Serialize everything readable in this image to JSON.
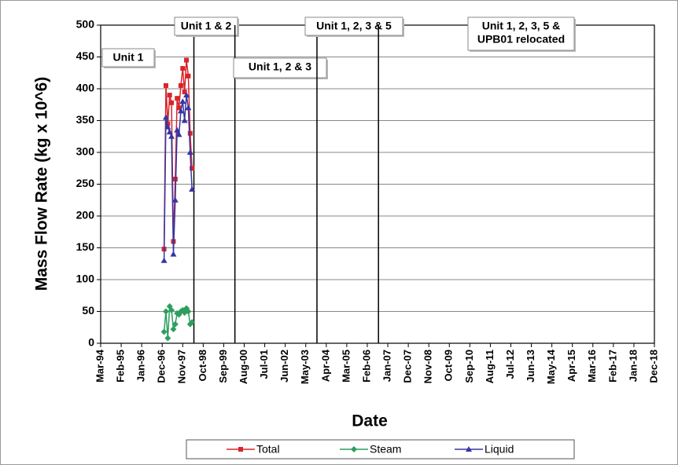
{
  "chart_data": {
    "type": "line",
    "y_label": "Mass Flow Rate (kg x 10^6)",
    "x_label": "Date",
    "x": [
      "1997-01",
      "1997-02",
      "1997-03",
      "1997-04",
      "1997-05",
      "1997-06",
      "1997-07",
      "1997-08",
      "1997-09",
      "1997-10",
      "1997-11",
      "1997-12",
      "1998-01",
      "1998-02",
      "1998-03",
      "1998-04"
    ],
    "series": [
      {
        "name": "Total",
        "color": "#d8252b",
        "marker": "square",
        "values": [
          148,
          405,
          345,
          390,
          378,
          160,
          258,
          385,
          370,
          405,
          432,
          395,
          445,
          420,
          330,
          275
        ]
      },
      {
        "name": "Steam",
        "color": "#2e9e5e",
        "marker": "diamond",
        "values": [
          18,
          50,
          8,
          58,
          52,
          22,
          30,
          47,
          45,
          50,
          52,
          48,
          55,
          50,
          30,
          33
        ]
      },
      {
        "name": "Liquid",
        "color": "#3535a5",
        "marker": "triangle",
        "values": [
          130,
          355,
          340,
          332,
          325,
          140,
          225,
          335,
          328,
          365,
          380,
          350,
          390,
          370,
          300,
          242
        ]
      }
    ],
    "xlim": [
      "1994-03",
      "2018-12"
    ],
    "xticks": [
      {
        "value": "1994-03",
        "label": "Mar-94"
      },
      {
        "value": "1995-02",
        "label": "Feb-95"
      },
      {
        "value": "1996-01",
        "label": "Jan-96"
      },
      {
        "value": "1996-12",
        "label": "Dec-96"
      },
      {
        "value": "1997-11",
        "label": "Nov-97"
      },
      {
        "value": "1998-10",
        "label": "Oct-98"
      },
      {
        "value": "1999-09",
        "label": "Sep-99"
      },
      {
        "value": "2000-08",
        "label": "Aug-00"
      },
      {
        "value": "2001-07",
        "label": "Jul-01"
      },
      {
        "value": "2002-06",
        "label": "Jun-02"
      },
      {
        "value": "2003-05",
        "label": "May-03"
      },
      {
        "value": "2004-04",
        "label": "Apr-04"
      },
      {
        "value": "2005-03",
        "label": "Mar-05"
      },
      {
        "value": "2006-02",
        "label": "Feb-06"
      },
      {
        "value": "2007-01",
        "label": "Jan-07"
      },
      {
        "value": "2007-12",
        "label": "Dec-07"
      },
      {
        "value": "2008-11",
        "label": "Nov-08"
      },
      {
        "value": "2009-10",
        "label": "Oct-09"
      },
      {
        "value": "2010-09",
        "label": "Sep-10"
      },
      {
        "value": "2011-08",
        "label": "Aug-11"
      },
      {
        "value": "2012-07",
        "label": "Jul-12"
      },
      {
        "value": "2013-06",
        "label": "Jun-13"
      },
      {
        "value": "2014-05",
        "label": "May-14"
      },
      {
        "value": "2015-04",
        "label": "Apr-15"
      },
      {
        "value": "2016-03",
        "label": "Mar-16"
      },
      {
        "value": "2017-02",
        "label": "Feb-17"
      },
      {
        "value": "2018-01",
        "label": "Jan-18"
      },
      {
        "value": "2018-12",
        "label": "Dec-18"
      }
    ],
    "ylim": [
      0,
      500
    ],
    "yticks": [
      0,
      50,
      100,
      150,
      200,
      250,
      300,
      350,
      400,
      450,
      500
    ],
    "grid": true,
    "legend": "bottom",
    "annotations": [
      {
        "label": [
          "Unit 1"
        ]
      },
      {
        "x": "1998-05",
        "label": [
          "Unit 1 & 2"
        ]
      },
      {
        "x": "2000-03",
        "label": [
          "Unit 1, 2 & 3"
        ]
      },
      {
        "x": "2003-11",
        "label": [
          "Unit 1, 2, 3 & 5"
        ]
      },
      {
        "x": "2006-08",
        "label": [
          "Unit 1, 2, 3, 5 &",
          "UPB01 relocated"
        ]
      }
    ]
  }
}
